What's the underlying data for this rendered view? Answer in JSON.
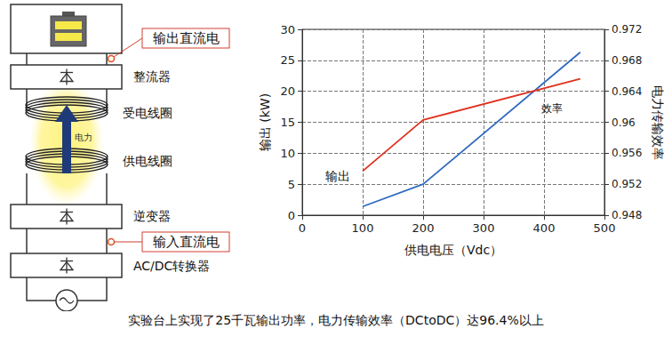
{
  "chart_data": {
    "type": "line",
    "x_label": "供电电压（Vdc）",
    "y_label": "输出 (kW)",
    "y2_label": "电力传输效率",
    "x": [
      100,
      200,
      460
    ],
    "xlim": [
      0,
      500
    ],
    "xticks": [
      0,
      100,
      200,
      300,
      400,
      500
    ],
    "ylim": [
      0,
      30
    ],
    "yticks": [
      0,
      5,
      10,
      15,
      20,
      25,
      30
    ],
    "y2lim": [
      0.948,
      0.972
    ],
    "y2ticks": [
      0.948,
      0.952,
      0.956,
      0.96,
      0.964,
      0.968,
      0.972
    ],
    "grid": true,
    "series": [
      {
        "name": "输出",
        "color": "#2f6ac0",
        "values": [
          1.4,
          5.0,
          26.3
        ]
      },
      {
        "name": "效率",
        "color": "#e0301e",
        "axis": "y2",
        "values": [
          0.9537,
          0.9603,
          0.9656
        ]
      }
    ]
  },
  "diagram": {
    "output_dc": "输出直流电",
    "rectifier": "整流器",
    "receiving_coil": "受电线圈",
    "power": "电力",
    "transmitting_coil": "供电线圈",
    "inverter": "逆变器",
    "input_dc": "输入直流电",
    "acdc_converter": "AC/DC转换器"
  },
  "caption": "实验台上实现了25千瓦输出功率，电力传输效率（DCtoDC）达96.4%以上"
}
